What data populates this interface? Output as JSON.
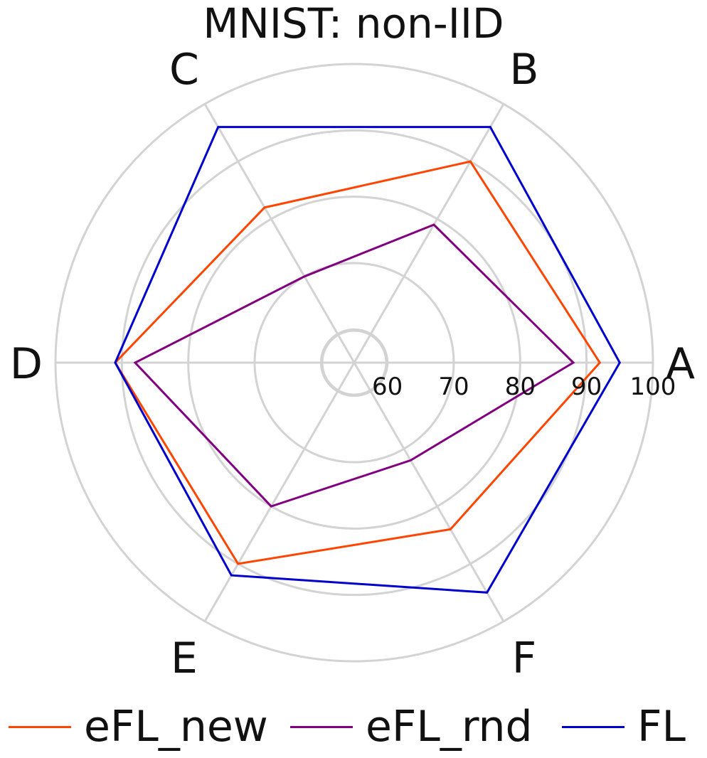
{
  "chart_data": {
    "type": "radar",
    "title": "MNIST: non-IID",
    "categories": [
      "A",
      "B",
      "C",
      "D",
      "E",
      "F"
    ],
    "radial_axis": {
      "range": [
        55,
        100
      ],
      "ticks": [
        60,
        70,
        80,
        90,
        100
      ]
    },
    "grid": true,
    "legend_position": "bottom",
    "series": [
      {
        "name": "eFL_new",
        "color": "#ff4500",
        "values": [
          92,
          90,
          82,
          91,
          90,
          84
        ]
      },
      {
        "name": "eFL_rnd",
        "color": "#800080",
        "values": [
          88,
          79,
          70,
          88,
          80,
          72
        ]
      },
      {
        "name": "FL",
        "color": "#0000cd",
        "values": [
          95,
          96,
          96,
          91,
          92,
          95
        ]
      }
    ]
  }
}
